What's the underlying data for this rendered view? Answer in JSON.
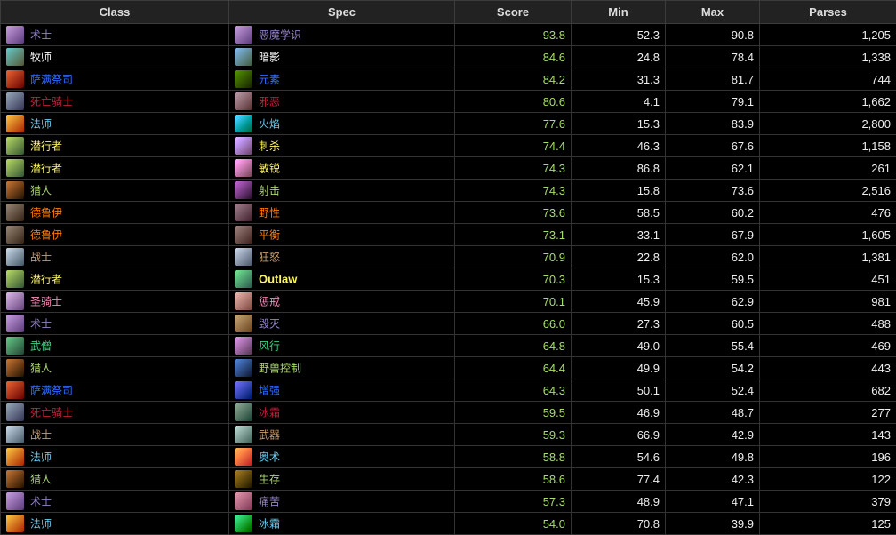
{
  "headers": {
    "class": "Class",
    "spec": "Spec",
    "score": "Score",
    "min": "Min",
    "max": "Max",
    "parses": "Parses"
  },
  "class_colors": {
    "warlock": "#9482C9",
    "priest": "#FFFFFF",
    "shaman": "#2F6BFF",
    "deathknight": "#C41F3B",
    "mage": "#69CCF0",
    "rogue": "#FFF569",
    "hunter": "#ABD473",
    "druid": "#FF7D0A",
    "warrior": "#C79C6E",
    "paladin": "#F58CBA",
    "monk": "#3FCF80"
  },
  "rows": [
    {
      "cls": "warlock",
      "class": "术士",
      "spec": "恶魔学识",
      "score": "93.8",
      "min": "52.3",
      "max": "90.8",
      "parses": "1,205"
    },
    {
      "cls": "priest",
      "class": "牧师",
      "spec": "暗影",
      "score": "84.6",
      "min": "24.8",
      "max": "78.4",
      "parses": "1,338"
    },
    {
      "cls": "shaman",
      "class": "萨满祭司",
      "spec": "元素",
      "score": "84.2",
      "min": "31.3",
      "max": "81.7",
      "parses": "744"
    },
    {
      "cls": "deathknight",
      "class": "死亡骑士",
      "spec": "邪恶",
      "score": "80.6",
      "min": "4.1",
      "max": "79.1",
      "parses": "1,662"
    },
    {
      "cls": "mage",
      "class": "法师",
      "spec": "火焰",
      "score": "77.6",
      "min": "15.3",
      "max": "83.9",
      "parses": "2,800"
    },
    {
      "cls": "rogue",
      "class": "潜行者",
      "spec": "刺杀",
      "score": "74.4",
      "min": "46.3",
      "max": "67.6",
      "parses": "1,158"
    },
    {
      "cls": "rogue",
      "class": "潜行者",
      "spec": "敏锐",
      "score": "74.3",
      "min": "86.8",
      "max": "62.1",
      "parses": "261"
    },
    {
      "cls": "hunter",
      "class": "猎人",
      "spec": "射击",
      "score": "74.3",
      "min": "15.8",
      "max": "73.6",
      "parses": "2,516"
    },
    {
      "cls": "druid",
      "class": "德鲁伊",
      "spec": "野性",
      "score": "73.6",
      "min": "58.5",
      "max": "60.2",
      "parses": "476"
    },
    {
      "cls": "druid",
      "class": "德鲁伊",
      "spec": "平衡",
      "score": "73.1",
      "min": "33.1",
      "max": "67.9",
      "parses": "1,605"
    },
    {
      "cls": "warrior",
      "class": "战士",
      "spec": "狂怒",
      "score": "70.9",
      "min": "22.8",
      "max": "62.0",
      "parses": "1,381"
    },
    {
      "cls": "rogue",
      "class": "潜行者",
      "spec": "Outlaw",
      "score": "70.3",
      "min": "15.3",
      "max": "59.5",
      "parses": "451"
    },
    {
      "cls": "paladin",
      "class": "圣骑士",
      "spec": "惩戒",
      "score": "70.1",
      "min": "45.9",
      "max": "62.9",
      "parses": "981"
    },
    {
      "cls": "warlock",
      "class": "术士",
      "spec": "毁灭",
      "score": "66.0",
      "min": "27.3",
      "max": "60.5",
      "parses": "488"
    },
    {
      "cls": "monk",
      "class": "武僧",
      "spec": "风行",
      "score": "64.8",
      "min": "49.0",
      "max": "55.4",
      "parses": "469"
    },
    {
      "cls": "hunter",
      "class": "猎人",
      "spec": "野兽控制",
      "score": "64.4",
      "min": "49.9",
      "max": "54.2",
      "parses": "443"
    },
    {
      "cls": "shaman",
      "class": "萨满祭司",
      "spec": "增强",
      "score": "64.3",
      "min": "50.1",
      "max": "52.4",
      "parses": "682"
    },
    {
      "cls": "deathknight",
      "class": "死亡骑士",
      "spec": "冰霜",
      "score": "59.5",
      "min": "46.9",
      "max": "48.7",
      "parses": "277"
    },
    {
      "cls": "warrior",
      "class": "战士",
      "spec": "武器",
      "score": "59.3",
      "min": "66.9",
      "max": "42.9",
      "parses": "143"
    },
    {
      "cls": "mage",
      "class": "法师",
      "spec": "奥术",
      "score": "58.8",
      "min": "54.6",
      "max": "49.8",
      "parses": "196"
    },
    {
      "cls": "hunter",
      "class": "猎人",
      "spec": "生存",
      "score": "58.6",
      "min": "77.4",
      "max": "42.3",
      "parses": "122"
    },
    {
      "cls": "warlock",
      "class": "术士",
      "spec": "痛苦",
      "score": "57.3",
      "min": "48.9",
      "max": "47.1",
      "parses": "379"
    },
    {
      "cls": "mage",
      "class": "法师",
      "spec": "冰霜",
      "score": "54.0",
      "min": "70.8",
      "max": "39.9",
      "parses": "125"
    }
  ]
}
